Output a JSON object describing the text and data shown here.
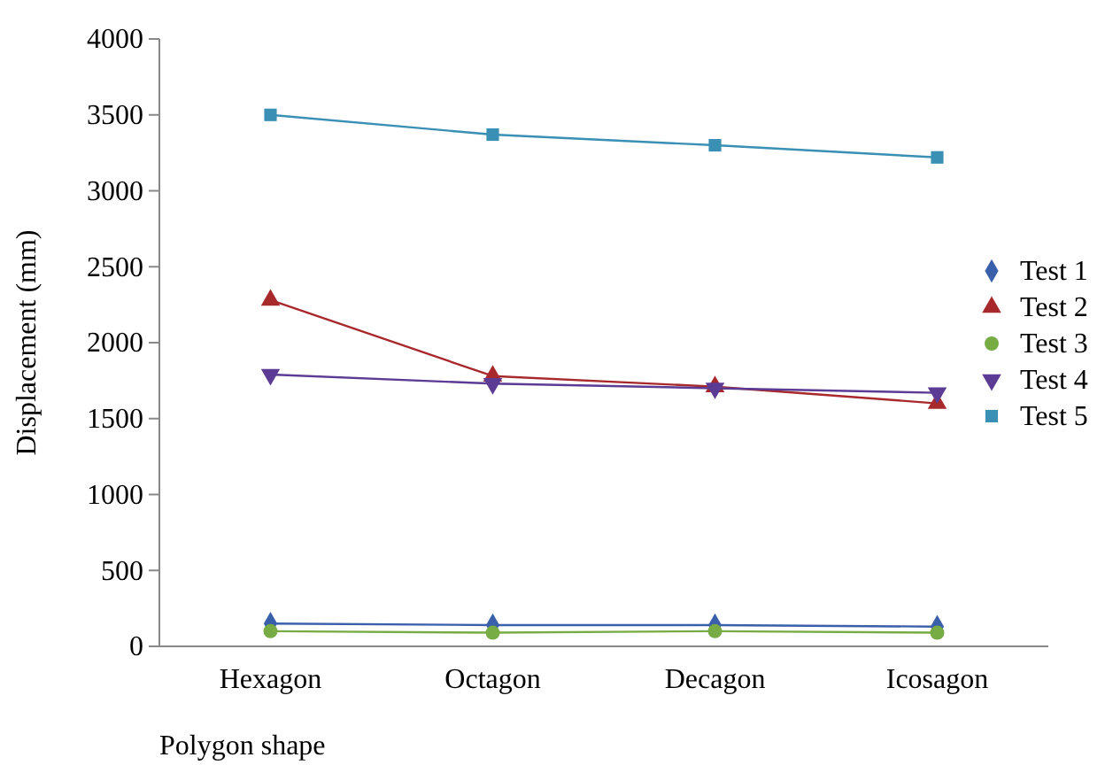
{
  "chart_data": {
    "type": "line",
    "xlabel": "Polygon shape",
    "ylabel": "Displacement (mm)",
    "categories": [
      "Hexagon",
      "Octagon",
      "Decagon",
      "Icosagon"
    ],
    "ylim": [
      0,
      4000
    ],
    "yticks": [
      0,
      500,
      1000,
      1500,
      2000,
      2500,
      3000,
      3500,
      4000
    ],
    "grid": false,
    "legend": "right",
    "series": [
      {
        "name": "Test 1",
        "color": "#3a5fab",
        "marker": "diamond",
        "values": [
          150,
          140,
          140,
          130
        ]
      },
      {
        "name": "Test 2",
        "color": "#a8292c",
        "marker": "triangle",
        "values": [
          2280,
          1780,
          1710,
          1600
        ]
      },
      {
        "name": "Test 3",
        "color": "#77ab44",
        "marker": "circle",
        "values": [
          100,
          90,
          100,
          90
        ]
      },
      {
        "name": "Test 4",
        "color": "#5b3b94",
        "marker": "triangle-down",
        "values": [
          1790,
          1730,
          1700,
          1670
        ]
      },
      {
        "name": "Test 5",
        "color": "#3a8fb5",
        "marker": "square",
        "values": [
          3500,
          3370,
          3300,
          3220
        ]
      }
    ]
  }
}
